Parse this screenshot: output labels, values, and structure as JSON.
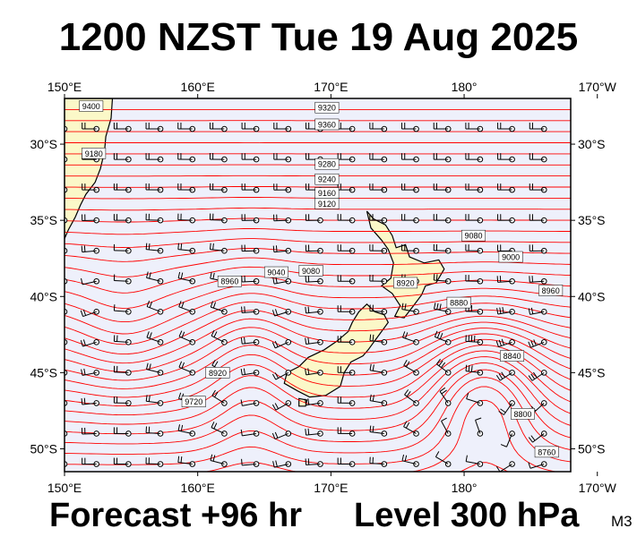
{
  "title": "1200 NZST Tue 19 Aug 2025",
  "footer": {
    "forecast": "Forecast +96 hr",
    "level": "Level 300 hPa",
    "model": "M3"
  },
  "map": {
    "projection": "equirectangular",
    "lon_range_east": [
      150,
      188
    ],
    "lat_range": [
      -51.5,
      -27
    ],
    "lon_ticks": [
      "150°E",
      "160°E",
      "170°E",
      "180°",
      "170°W"
    ],
    "lon_tick_values": [
      150,
      160,
      170,
      180,
      190
    ],
    "lat_ticks": [
      "30°S",
      "35°S",
      "40°S",
      "45°S",
      "50°S"
    ],
    "lat_tick_values": [
      -30,
      -35,
      -40,
      -45,
      -50
    ],
    "contour_field": "geopotential height",
    "contour_interval_m": 40,
    "contour_labels": [
      {
        "text": "9400",
        "lon": 152.0,
        "lat": -27.5
      },
      {
        "text": "9360",
        "lon": 169.7,
        "lat": -28.7
      },
      {
        "text": "9320",
        "lon": 169.7,
        "lat": -27.6
      },
      {
        "text": "9180",
        "lon": 152.2,
        "lat": -30.6
      },
      {
        "text": "9280",
        "lon": 169.7,
        "lat": -31.3
      },
      {
        "text": "9240",
        "lon": 169.7,
        "lat": -32.3
      },
      {
        "text": "9160",
        "lon": 169.7,
        "lat": -33.2
      },
      {
        "text": "9120",
        "lon": 169.7,
        "lat": -33.9
      },
      {
        "text": "9080",
        "lon": 180.7,
        "lat": -36.0
      },
      {
        "text": "9000",
        "lon": 183.5,
        "lat": -37.4
      },
      {
        "text": "8960",
        "lon": 186.5,
        "lat": -39.6
      },
      {
        "text": "8920",
        "lon": 175.6,
        "lat": -39.1
      },
      {
        "text": "8880",
        "lon": 179.6,
        "lat": -40.4
      },
      {
        "text": "8840",
        "lon": 183.6,
        "lat": -43.9
      },
      {
        "text": "8800",
        "lon": 184.4,
        "lat": -47.7
      },
      {
        "text": "8760",
        "lon": 186.2,
        "lat": -50.2
      },
      {
        "text": "8960",
        "lon": 162.4,
        "lat": -39.0
      },
      {
        "text": "9040",
        "lon": 165.9,
        "lat": -38.4
      },
      {
        "text": "9080",
        "lon": 168.5,
        "lat": -38.3
      },
      {
        "text": "8920",
        "lon": 161.5,
        "lat": -45.0
      },
      {
        "text": "9720",
        "lon": 159.7,
        "lat": -46.9
      }
    ],
    "wind_barbs": "present",
    "colors": {
      "contour": "#ff0000",
      "ocean": "#eef0fb",
      "land": "#fbf8c8",
      "coastline": "#000000",
      "frame": "#000000"
    }
  }
}
